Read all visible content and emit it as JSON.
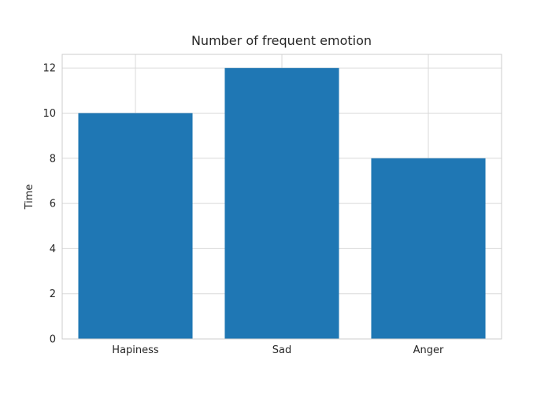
{
  "chart_data": {
    "type": "bar",
    "title": "Number of frequent emotion",
    "xlabel": "",
    "ylabel": "Time",
    "categories": [
      "Hapiness",
      "Sad",
      "Anger"
    ],
    "values": [
      10,
      12,
      8
    ],
    "ylim": [
      0,
      12.6
    ],
    "yticks": [
      0,
      2,
      4,
      6,
      8,
      10,
      12
    ],
    "grid": true,
    "bar_color": "#1f77b4"
  }
}
